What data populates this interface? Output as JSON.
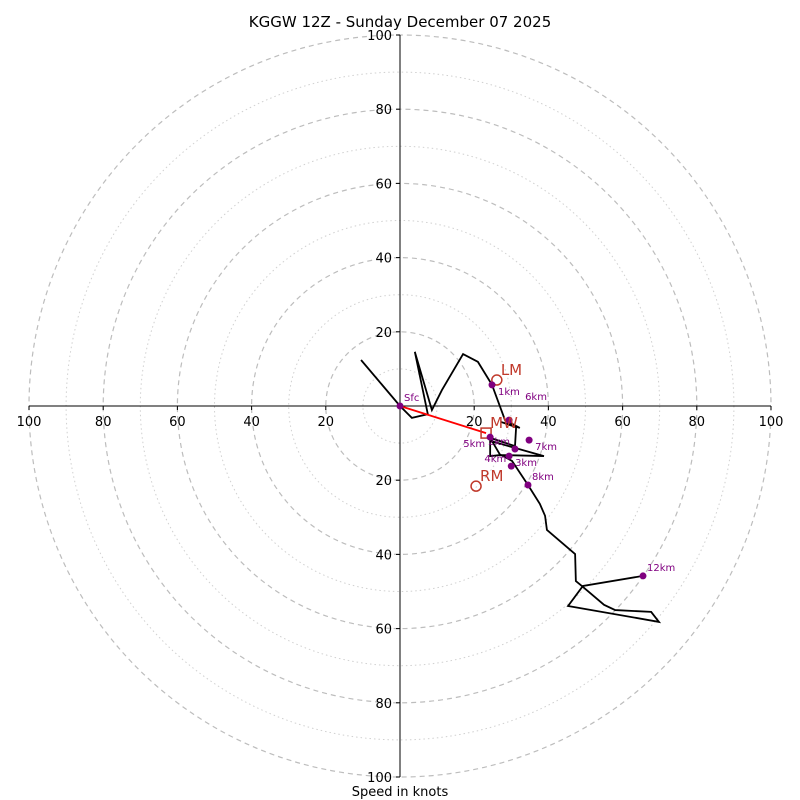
{
  "chart_data": {
    "type": "hodograph",
    "title": "KGGW 12Z - Sunday December 07 2025",
    "xlabel": "Speed in knots",
    "rmax": 100,
    "ring_labels": [
      "20",
      "40",
      "60",
      "80",
      "100"
    ],
    "x_tick_labels": [
      "100",
      "80",
      "60",
      "40",
      "20",
      "20",
      "40",
      "60",
      "80",
      "100"
    ],
    "y_tick_labels": [
      "100",
      "80",
      "60",
      "40",
      "20",
      "20",
      "40",
      "60",
      "80",
      "100"
    ],
    "path": [
      [
        -10.5,
        12.4
      ],
      [
        0,
        0
      ],
      [
        3.2,
        -3.2
      ],
      [
        7.5,
        -2.2
      ],
      [
        4,
        14.6
      ],
      [
        8.6,
        -1.1
      ],
      [
        11.3,
        4.3
      ],
      [
        17,
        14
      ],
      [
        21,
        11.9
      ],
      [
        24.8,
        5.7
      ],
      [
        28.3,
        -3.8
      ],
      [
        32.3,
        -5.9
      ],
      [
        27.2,
        -4.3
      ],
      [
        31.3,
        -5.7
      ],
      [
        31,
        -10.8
      ],
      [
        24.3,
        -8.6
      ],
      [
        27,
        -13.2
      ],
      [
        38.8,
        -13.5
      ],
      [
        24.3,
        -9.4
      ],
      [
        24.3,
        -13.5
      ],
      [
        27.2,
        -13.2
      ],
      [
        30.2,
        -14.8
      ],
      [
        34.5,
        -21.3
      ],
      [
        37.7,
        -26.4
      ],
      [
        39.1,
        -29.6
      ],
      [
        39.6,
        -33.4
      ],
      [
        47.2,
        -39.9
      ],
      [
        47.4,
        -47.2
      ],
      [
        49,
        -48.5
      ],
      [
        55,
        -53.6
      ],
      [
        58,
        -55
      ],
      [
        67.7,
        -55.5
      ],
      [
        69.8,
        -58.2
      ],
      [
        45.3,
        -53.9
      ],
      [
        49.3,
        -48.5
      ],
      [
        65.5,
        -45.8
      ]
    ],
    "points": [
      {
        "label": "Sfc",
        "u": 0,
        "v": 0
      },
      {
        "label": "1km",
        "u": 24.8,
        "v": 5.7
      },
      {
        "label": "6km",
        "u": 29.4,
        "v": -3.8
      },
      {
        "label": "7km",
        "u": 34.8,
        "v": -9.2
      },
      {
        "label": "2km",
        "u": 31,
        "v": -11.6
      },
      {
        "label": "3km",
        "u": 29.4,
        "v": -13.5
      },
      {
        "label": "4km",
        "u": 30,
        "v": -16.2
      },
      {
        "label": "5km",
        "u": 24.3,
        "v": -8.4
      },
      {
        "label": "8km",
        "u": 34.5,
        "v": -21.3
      },
      {
        "label": "12km",
        "u": 65.5,
        "v": -45.8
      }
    ],
    "markers": [
      {
        "label": "LM",
        "u": 26.1,
        "v": 7,
        "shape": "circle"
      },
      {
        "label": "MW",
        "u": 23.2,
        "v": -7.3,
        "shape": "square"
      },
      {
        "label": "RM",
        "u": 20.5,
        "v": -21.6,
        "shape": "circle"
      }
    ],
    "shear_vector": {
      "from": [
        0,
        0
      ],
      "to": [
        23.2,
        -7.3
      ]
    }
  }
}
